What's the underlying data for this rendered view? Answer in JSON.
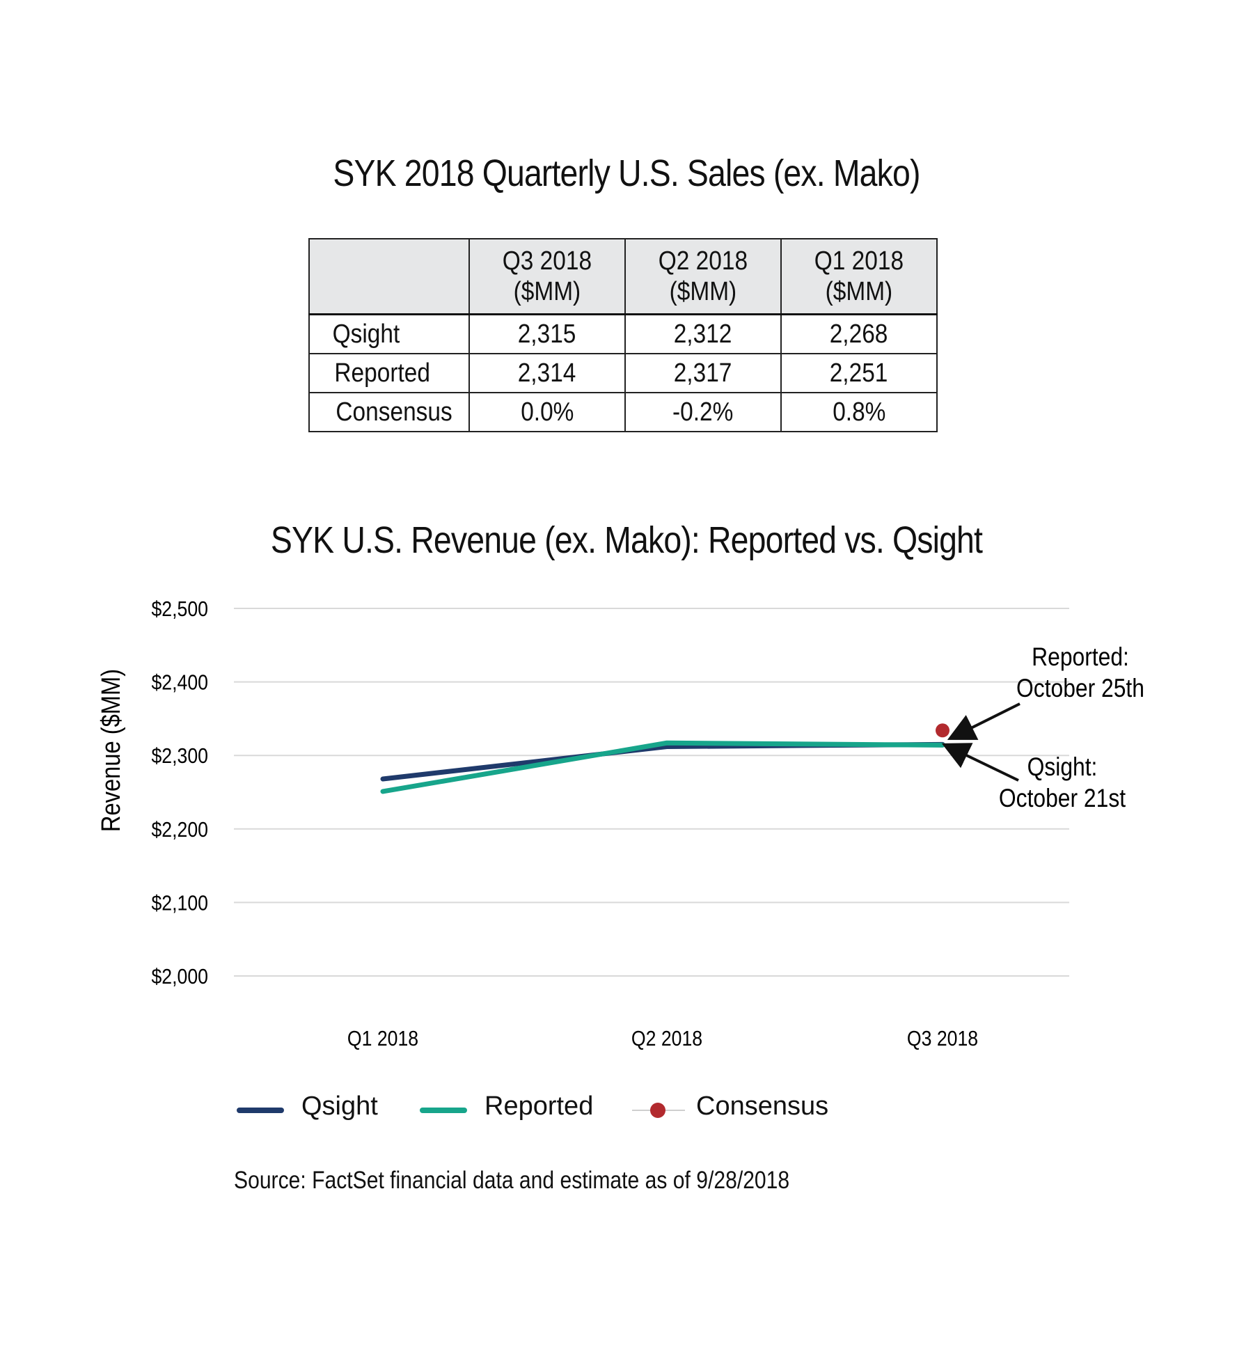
{
  "table": {
    "title": "SYK 2018 Quarterly U.S. Sales (ex. Mako)",
    "columns": [
      {
        "line1": "Q3 2018",
        "line2": "($MM)"
      },
      {
        "line1": "Q2 2018",
        "line2": "($MM)"
      },
      {
        "line1": "Q1 2018",
        "line2": "($MM)"
      }
    ],
    "rows": [
      {
        "label": "Qsight",
        "values": [
          "2,315",
          "2,312",
          "2,268"
        ]
      },
      {
        "label": "Reported",
        "values": [
          "2,314",
          "2,317",
          "2,251"
        ]
      },
      {
        "label": "Consensus",
        "values": [
          "0.0%",
          "-0.2%",
          "0.8%"
        ]
      }
    ]
  },
  "chart_data": {
    "type": "line",
    "title": "SYK U.S. Revenue (ex. Mako): Reported vs. Qsight",
    "ylabel": "Revenue ($MM)",
    "xlabel": "",
    "categories": [
      "Q1 2018",
      "Q2 2018",
      "Q3 2018"
    ],
    "ylim": [
      2000,
      2500
    ],
    "yticks": [
      2000,
      2100,
      2200,
      2300,
      2400,
      2500
    ],
    "ytick_labels": [
      "$2,000",
      "$2,100",
      "$2,200",
      "$2,300",
      "$2,400",
      "$2,500"
    ],
    "grid": true,
    "series": [
      {
        "name": "Qsight",
        "values": [
          2268,
          2312,
          2315
        ],
        "color": "#1f3a6b"
      },
      {
        "name": "Reported",
        "values": [
          2251,
          2317,
          2314
        ],
        "color": "#17a58b"
      }
    ],
    "points": [
      {
        "name": "Consensus",
        "category": "Q3 2018",
        "value": 2334,
        "color": "#b22a2e"
      }
    ],
    "annotations": [
      {
        "line1": "Reported:",
        "line2": "October 25th",
        "target_series": "Consensus"
      },
      {
        "line1": "Qsight:",
        "line2": "October 21st",
        "target_series": "Qsight"
      }
    ],
    "legend": [
      "Qsight",
      "Reported",
      "Consensus"
    ],
    "legend_position": "bottom"
  },
  "source": "Source: FactSet financial data and estimate as of 9/28/2018"
}
